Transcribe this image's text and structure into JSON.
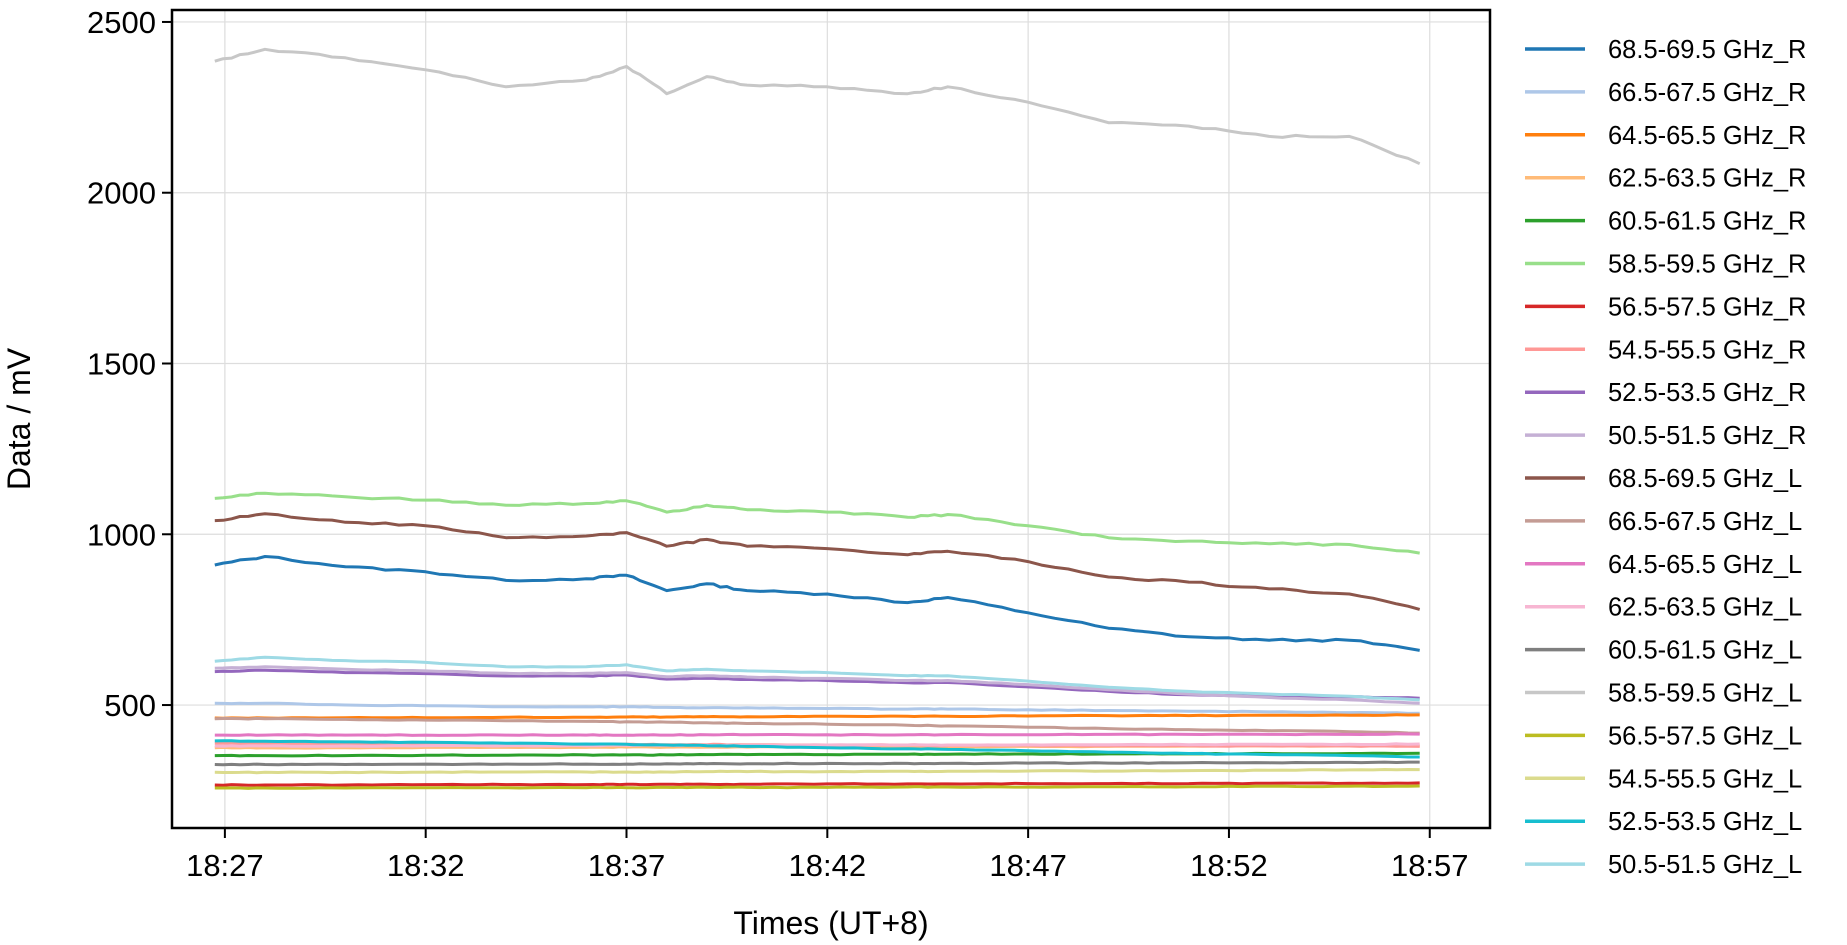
{
  "chart_data": {
    "type": "line",
    "xlabel": "Times (UT+8)",
    "ylabel": "Data / mV",
    "x_ticks": [
      "18:27",
      "18:32",
      "18:37",
      "18:42",
      "18:47",
      "18:52",
      "18:57"
    ],
    "x_tick_minutes": [
      27,
      32,
      37,
      42,
      47,
      52,
      57
    ],
    "xlim": [
      "18:25:41",
      "18:58:30"
    ],
    "y_ticks": [
      500,
      1000,
      1500,
      2000,
      2500
    ],
    "ylim": [
      140,
      2535
    ],
    "grid": true,
    "legend_position": "outside-right",
    "x": [
      "18:26:45",
      "18:28:00",
      "18:30:00",
      "18:32:00",
      "18:34:00",
      "18:36:00",
      "18:37:00",
      "18:38:00",
      "18:39:00",
      "18:40:00",
      "18:42:00",
      "18:44:00",
      "18:45:00",
      "18:47:00",
      "18:49:00",
      "18:51:00",
      "18:53:00",
      "18:55:00",
      "18:56:45"
    ],
    "series": [
      {
        "name": "68.5-69.5 GHz_R",
        "color": "#1f77b4",
        "values": [
          910,
          935,
          905,
          890,
          865,
          870,
          880,
          835,
          855,
          835,
          825,
          800,
          815,
          770,
          725,
          700,
          690,
          690,
          660
        ]
      },
      {
        "name": "66.5-67.5 GHz_R",
        "color": "#aec7e8",
        "values": [
          505,
          505,
          500,
          498,
          495,
          495,
          495,
          493,
          492,
          492,
          490,
          488,
          488,
          486,
          484,
          482,
          480,
          478,
          476
        ]
      },
      {
        "name": "64.5-65.5 GHz_R",
        "color": "#ff7f0e",
        "values": [
          462,
          462,
          463,
          463,
          464,
          464,
          465,
          465,
          466,
          466,
          467,
          467,
          467,
          468,
          469,
          469,
          470,
          470,
          471
        ]
      },
      {
        "name": "62.5-63.5 GHz_R",
        "color": "#ffbb78",
        "values": [
          375,
          375,
          375,
          376,
          376,
          376,
          377,
          377,
          377,
          377,
          378,
          378,
          378,
          379,
          379,
          380,
          380,
          380,
          381
        ]
      },
      {
        "name": "60.5-61.5 GHz_R",
        "color": "#2ca02c",
        "values": [
          352,
          352,
          352,
          353,
          353,
          354,
          354,
          354,
          355,
          355,
          355,
          356,
          356,
          357,
          357,
          357,
          358,
          358,
          359
        ]
      },
      {
        "name": "58.5-59.5 GHz_R",
        "color": "#98df8a",
        "values": [
          1105,
          1120,
          1110,
          1100,
          1085,
          1090,
          1098,
          1065,
          1085,
          1072,
          1065,
          1050,
          1058,
          1025,
          990,
          980,
          972,
          970,
          945
        ]
      },
      {
        "name": "56.5-57.5 GHz_R",
        "color": "#d62728",
        "values": [
          266,
          266,
          266,
          267,
          267,
          267,
          268,
          268,
          268,
          268,
          269,
          269,
          269,
          270,
          270,
          270,
          271,
          271,
          272
        ]
      },
      {
        "name": "54.5-55.5 GHz_R",
        "color": "#ff9896",
        "values": [
          388,
          387,
          386,
          386,
          385,
          385,
          385,
          384,
          384,
          384,
          383,
          383,
          382,
          382,
          381,
          381,
          380,
          380,
          379
        ]
      },
      {
        "name": "52.5-53.5 GHz_R",
        "color": "#9467bd",
        "values": [
          598,
          602,
          595,
          592,
          585,
          585,
          588,
          576,
          578,
          575,
          572,
          565,
          566,
          553,
          540,
          530,
          526,
          524,
          520
        ]
      },
      {
        "name": "50.5-51.5 GHz_R",
        "color": "#c5b0d5",
        "values": [
          608,
          612,
          605,
          600,
          593,
          593,
          595,
          583,
          586,
          582,
          578,
          572,
          572,
          560,
          545,
          532,
          522,
          515,
          505
        ]
      },
      {
        "name": "68.5-69.5 GHz_L",
        "color": "#8c564b",
        "values": [
          1040,
          1060,
          1035,
          1025,
          990,
          995,
          1005,
          965,
          985,
          965,
          958,
          940,
          950,
          920,
          875,
          860,
          840,
          825,
          780
        ]
      },
      {
        "name": "66.5-67.5 GHz_L",
        "color": "#c49c94",
        "values": [
          460,
          460,
          458,
          456,
          454,
          452,
          451,
          450,
          448,
          446,
          444,
          441,
          439,
          435,
          431,
          428,
          425,
          422,
          418
        ]
      },
      {
        "name": "64.5-65.5 GHz_L",
        "color": "#e377c2",
        "values": [
          412,
          412,
          412,
          412,
          412,
          412,
          412,
          412,
          413,
          413,
          413,
          413,
          413,
          413,
          414,
          414,
          414,
          414,
          415
        ]
      },
      {
        "name": "62.5-63.5 GHz_L",
        "color": "#f7b6d2",
        "values": [
          380,
          380,
          380,
          381,
          381,
          381,
          382,
          382,
          382,
          382,
          383,
          383,
          383,
          384,
          384,
          384,
          385,
          385,
          386
        ]
      },
      {
        "name": "60.5-61.5 GHz_L",
        "color": "#7f7f7f",
        "values": [
          326,
          326,
          326,
          327,
          327,
          327,
          327,
          328,
          328,
          328,
          329,
          329,
          329,
          330,
          330,
          331,
          331,
          332,
          333
        ]
      },
      {
        "name": "58.5-59.5 GHz_L",
        "color": "#c7c7c7",
        "values": [
          2385,
          2420,
          2395,
          2360,
          2310,
          2330,
          2370,
          2290,
          2340,
          2315,
          2310,
          2290,
          2310,
          2265,
          2205,
          2195,
          2165,
          2165,
          2085
        ]
      },
      {
        "name": "56.5-57.5 GHz_L",
        "color": "#bcbd22",
        "values": [
          257,
          257,
          257,
          258,
          258,
          258,
          258,
          259,
          259,
          259,
          259,
          260,
          260,
          260,
          261,
          261,
          262,
          262,
          263
        ]
      },
      {
        "name": "54.5-55.5 GHz_L",
        "color": "#dbdb8d",
        "values": [
          303,
          303,
          303,
          303,
          304,
          304,
          304,
          304,
          305,
          305,
          305,
          306,
          306,
          307,
          307,
          308,
          309,
          310,
          311
        ]
      },
      {
        "name": "52.5-53.5 GHz_L",
        "color": "#17becf",
        "values": [
          395,
          394,
          392,
          391,
          388,
          386,
          385,
          383,
          381,
          379,
          375,
          372,
          370,
          366,
          362,
          358,
          355,
          352,
          348
        ]
      },
      {
        "name": "50.5-51.5 GHz_L",
        "color": "#9edae5",
        "values": [
          628,
          640,
          630,
          625,
          612,
          612,
          618,
          600,
          605,
          600,
          595,
          586,
          586,
          570,
          552,
          540,
          532,
          526,
          515
        ]
      }
    ]
  }
}
